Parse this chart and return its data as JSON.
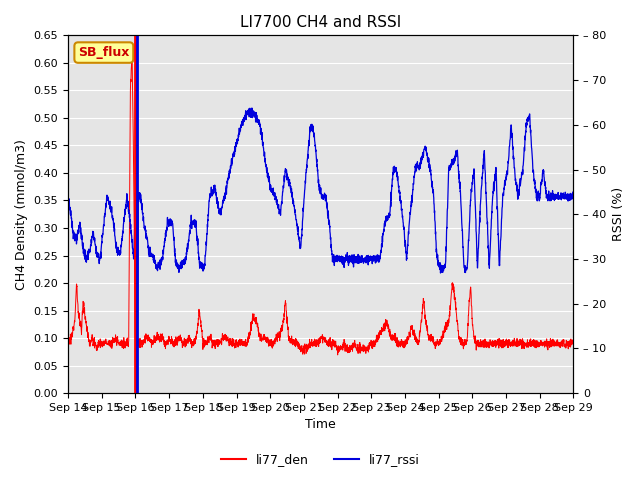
{
  "title": "LI7700 CH4 and RSSI",
  "xlabel": "Time",
  "ylabel_left": "CH4 Density (mmol/m3)",
  "ylabel_right": "RSSI (%)",
  "ylim_left": [
    0.0,
    0.65
  ],
  "ylim_right": [
    0,
    80
  ],
  "yticks_left": [
    0.0,
    0.05,
    0.1,
    0.15,
    0.2,
    0.25,
    0.3,
    0.35,
    0.4,
    0.45,
    0.5,
    0.55,
    0.6,
    0.65
  ],
  "yticks_right_vals": [
    0,
    10,
    20,
    30,
    40,
    50,
    60,
    70,
    80
  ],
  "yticks_right_labels": [
    "0",
    "– 10",
    "– 20",
    "– 30",
    "– 40",
    "– 50",
    "– 60",
    "– 70",
    "– 80"
  ],
  "xtick_labels": [
    "Sep 14",
    "Sep 15",
    "Sep 16",
    "Sep 17",
    "Sep 18",
    "Sep 19",
    "Sep 20",
    "Sep 21",
    "Sep 22",
    "Sep 23",
    "Sep 24",
    "Sep 25",
    "Sep 26",
    "Sep 27",
    "Sep 28",
    "Sep 29"
  ],
  "color_den": "#ff0000",
  "color_rssi": "#0000dd",
  "color_vline_red": "#ff0000",
  "color_vline_blue": "#0000dd",
  "annotation_text": "SB_flux",
  "annotation_color": "#cc0000",
  "annotation_bg": "#ffff99",
  "background_color": "#e5e5e5",
  "title_fontsize": 11,
  "label_fontsize": 9,
  "tick_fontsize": 8,
  "legend_fontsize": 9
}
